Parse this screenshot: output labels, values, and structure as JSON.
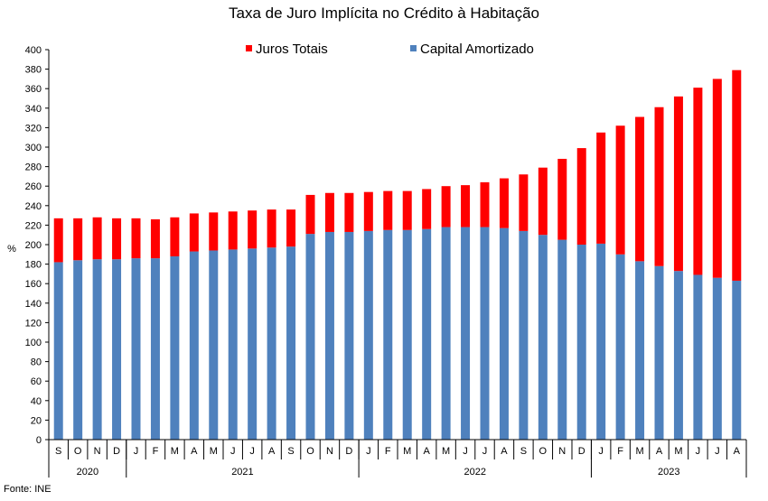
{
  "chart_data": {
    "type": "bar",
    "stacked": true,
    "title": "Taxa de Juro Implícita no Crédito à Habitação",
    "ylabel": "%",
    "xlabel": "",
    "ylim": [
      0,
      400
    ],
    "y_tick_step": 20,
    "grid": false,
    "legend_position": "top-center",
    "categories": [
      "S",
      "O",
      "N",
      "D",
      "J",
      "F",
      "M",
      "A",
      "M",
      "J",
      "J",
      "A",
      "S",
      "O",
      "N",
      "D",
      "J",
      "F",
      "M",
      "A",
      "M",
      "J",
      "J",
      "A",
      "S",
      "O",
      "N",
      "D",
      "J",
      "F",
      "M",
      "A",
      "M",
      "J",
      "J",
      "A"
    ],
    "year_groups": [
      {
        "label": "2020",
        "count": 4
      },
      {
        "label": "2021",
        "count": 12
      },
      {
        "label": "2022",
        "count": 12
      },
      {
        "label": "2023",
        "count": 8
      }
    ],
    "series": [
      {
        "name": "Capital Amortizado",
        "color": "#4f81bd",
        "values": [
          182,
          184,
          185,
          185,
          186,
          186,
          188,
          193,
          194,
          195,
          196,
          197,
          198,
          211,
          213,
          213,
          214,
          215,
          215,
          216,
          218,
          218,
          218,
          217,
          214,
          210,
          205,
          200,
          201,
          190,
          183,
          178,
          173,
          169,
          166,
          163
        ]
      },
      {
        "name": "Juros Totais",
        "color": "#ff0000",
        "values": [
          45,
          43,
          43,
          42,
          41,
          40,
          40,
          39,
          39,
          39,
          39,
          39,
          38,
          40,
          40,
          40,
          40,
          40,
          40,
          41,
          42,
          43,
          46,
          51,
          58,
          69,
          83,
          99,
          114,
          132,
          148,
          163,
          179,
          192,
          204,
          216
        ]
      }
    ]
  },
  "source": "Fonte: INE"
}
